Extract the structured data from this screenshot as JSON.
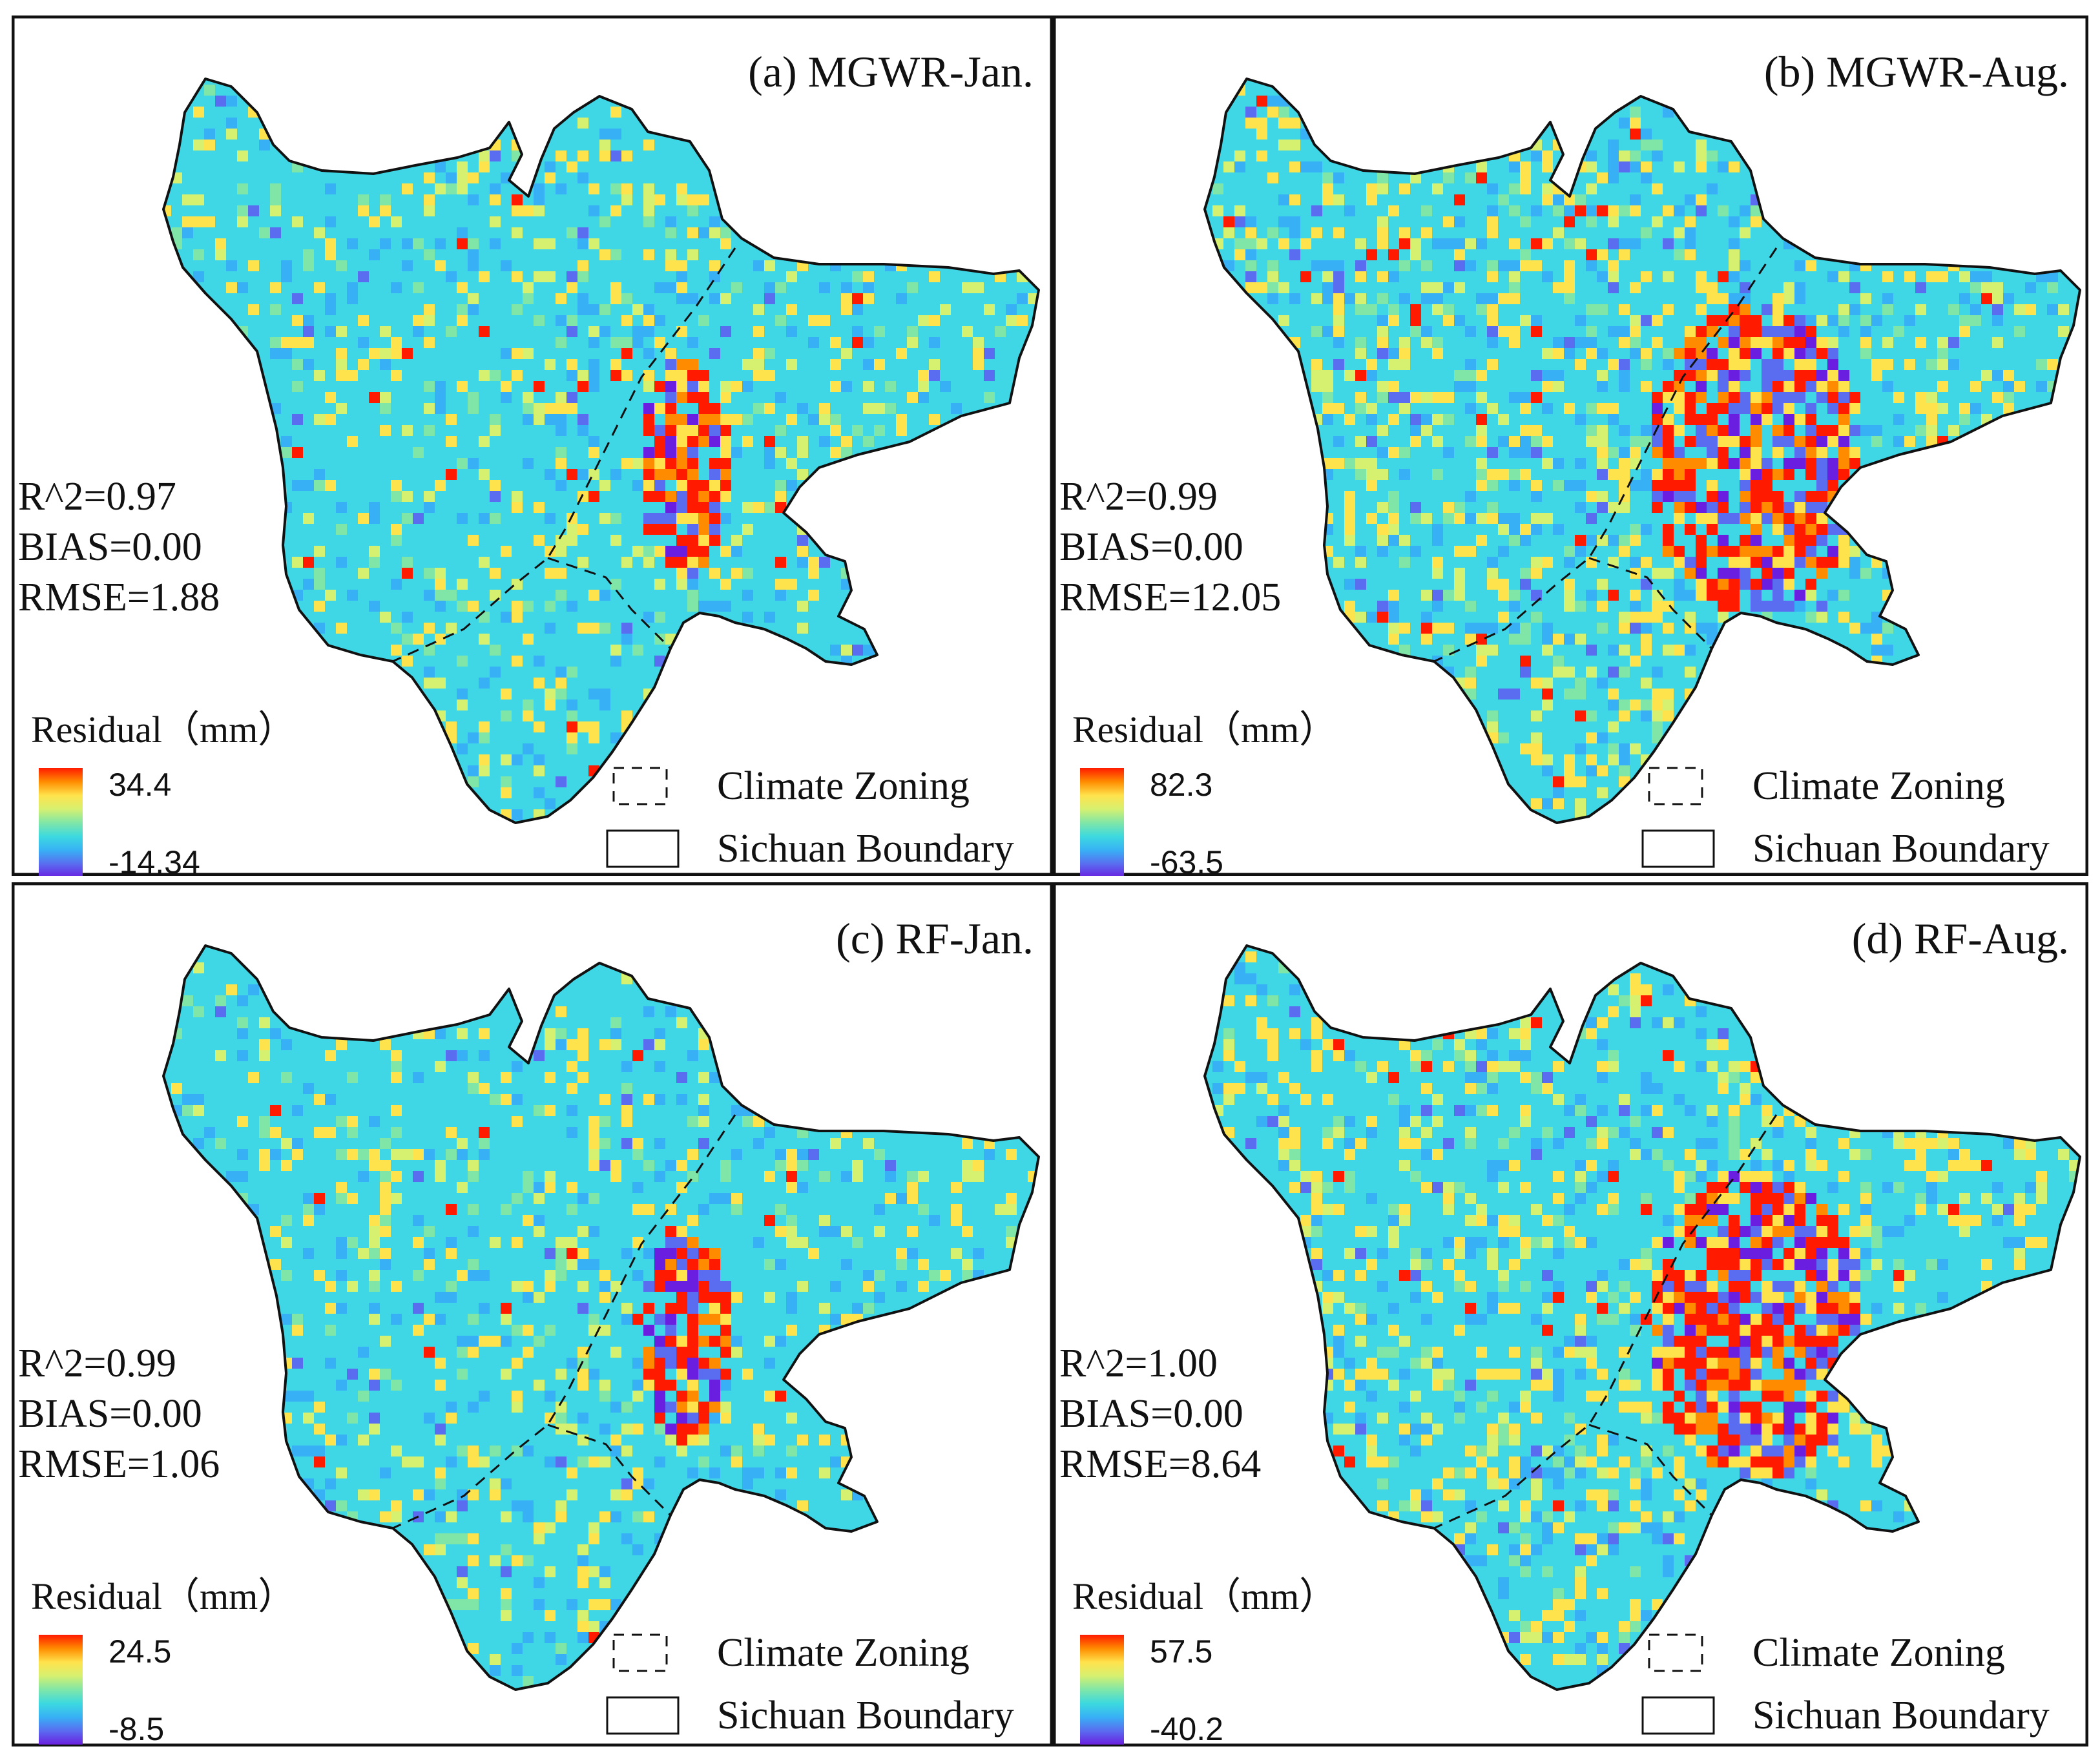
{
  "figure": {
    "panels": [
      {
        "id": "a",
        "title": "(a)  MGWR-Jan.",
        "stats": [
          "R^2=0.97",
          "BIAS=0.00",
          "RMSE=1.88"
        ],
        "legend": {
          "title": "Residual（mm）",
          "max": "34.4",
          "min": "-14.34"
        },
        "hotspot": "centre",
        "intensity": 0.35
      },
      {
        "id": "b",
        "title": "(b)  MGWR-Aug.",
        "stats": [
          "R^2=0.99",
          "BIAS=0.00",
          "RMSE=12.05"
        ],
        "legend": {
          "title": "Residual（mm）",
          "max": "82.3",
          "min": "-63.5"
        },
        "hotspot": "basin",
        "intensity": 0.75
      },
      {
        "id": "c",
        "title": "(c)  RF-Jan.",
        "stats": [
          "R^2=0.99",
          "BIAS=0.00",
          "RMSE=1.06"
        ],
        "legend": {
          "title": "Residual（mm）",
          "max": "24.5",
          "min": "-8.5"
        },
        "hotspot": "centre",
        "intensity": 0.3
      },
      {
        "id": "d",
        "title": "(d)  RF-Aug.",
        "stats": [
          "R^2=1.00",
          "BIAS=0.00",
          "RMSE=8.64"
        ],
        "legend": {
          "title": "Residual（mm）",
          "max": "57.5",
          "min": "-40.2"
        },
        "hotspot": "basin",
        "intensity": 0.65
      }
    ],
    "map_legend": {
      "climate_zoning": "Climate Zoning",
      "sichuan_boundary": "Sichuan Boundary"
    },
    "colors": {
      "ramp": [
        "#ff1a00",
        "#ff8c00",
        "#ffe34d",
        "#d6f070",
        "#7fe6a8",
        "#3cd9e0",
        "#38b0f5",
        "#5a6cf0",
        "#6a1fe0"
      ],
      "map_base": "#3fd6e6",
      "border": "#111111"
    }
  }
}
